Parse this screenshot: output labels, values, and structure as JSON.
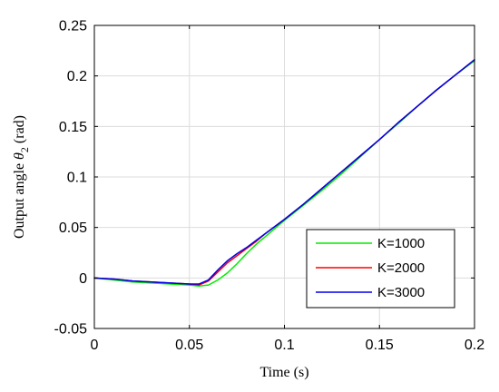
{
  "chart_data": {
    "type": "line",
    "title": "",
    "xlabel": "Time (s)",
    "ylabel": {
      "prefix": "Output angle ",
      "symbol": "θ",
      "subscript": "2",
      "suffix": " (rad)"
    },
    "xlim": [
      0,
      0.2
    ],
    "ylim": [
      -0.05,
      0.25
    ],
    "xticks": [
      0,
      0.05,
      0.1,
      0.15,
      0.2
    ],
    "xtick_labels": [
      "0",
      "0.05",
      "0.1",
      "0.15",
      "0.2"
    ],
    "yticks": [
      -0.05,
      0,
      0.05,
      0.1,
      0.15,
      0.2,
      0.25
    ],
    "ytick_labels": [
      "-0.05",
      "0",
      "0.05",
      "0.1",
      "0.15",
      "0.2",
      "0.25"
    ],
    "grid": true,
    "legend_position": "bottom-right",
    "series": [
      {
        "name": "K=1000",
        "color": "#00ee00",
        "x": [
          0,
          0.01,
          0.02,
          0.03,
          0.04,
          0.05,
          0.055,
          0.06,
          0.065,
          0.07,
          0.075,
          0.08,
          0.085,
          0.09,
          0.1,
          0.11,
          0.12,
          0.13,
          0.14,
          0.15,
          0.16,
          0.17,
          0.18,
          0.19,
          0.2
        ],
        "y": [
          0,
          -0.002,
          -0.004,
          -0.005,
          -0.006,
          -0.007,
          -0.008,
          -0.007,
          -0.002,
          0.005,
          0.014,
          0.024,
          0.033,
          0.041,
          0.057,
          0.072,
          0.087,
          0.103,
          0.12,
          0.137,
          0.153,
          0.17,
          0.186,
          0.201,
          0.215
        ]
      },
      {
        "name": "K=2000",
        "color": "#ff0000",
        "x": [
          0,
          0.01,
          0.02,
          0.03,
          0.04,
          0.05,
          0.055,
          0.06,
          0.065,
          0.07,
          0.075,
          0.08,
          0.085,
          0.09,
          0.1,
          0.11,
          0.12,
          0.13,
          0.14,
          0.15,
          0.16,
          0.17,
          0.18,
          0.19,
          0.2
        ],
        "y": [
          0,
          -0.001,
          -0.003,
          -0.004,
          -0.005,
          -0.006,
          -0.007,
          -0.003,
          0.006,
          0.015,
          0.022,
          0.029,
          0.036,
          0.044,
          0.058,
          0.073,
          0.089,
          0.105,
          0.121,
          0.137,
          0.154,
          0.17,
          0.186,
          0.201,
          0.216
        ]
      },
      {
        "name": "K=3000",
        "color": "#0000ee",
        "x": [
          0,
          0.01,
          0.02,
          0.03,
          0.04,
          0.05,
          0.055,
          0.06,
          0.065,
          0.07,
          0.075,
          0.08,
          0.085,
          0.09,
          0.1,
          0.11,
          0.12,
          0.13,
          0.14,
          0.15,
          0.16,
          0.17,
          0.18,
          0.19,
          0.2
        ],
        "y": [
          0,
          -0.001,
          -0.003,
          -0.004,
          -0.005,
          -0.006,
          -0.006,
          -0.002,
          0.008,
          0.017,
          0.024,
          0.03,
          0.037,
          0.044,
          0.058,
          0.073,
          0.089,
          0.105,
          0.121,
          0.137,
          0.154,
          0.17,
          0.186,
          0.201,
          0.216
        ]
      }
    ]
  }
}
